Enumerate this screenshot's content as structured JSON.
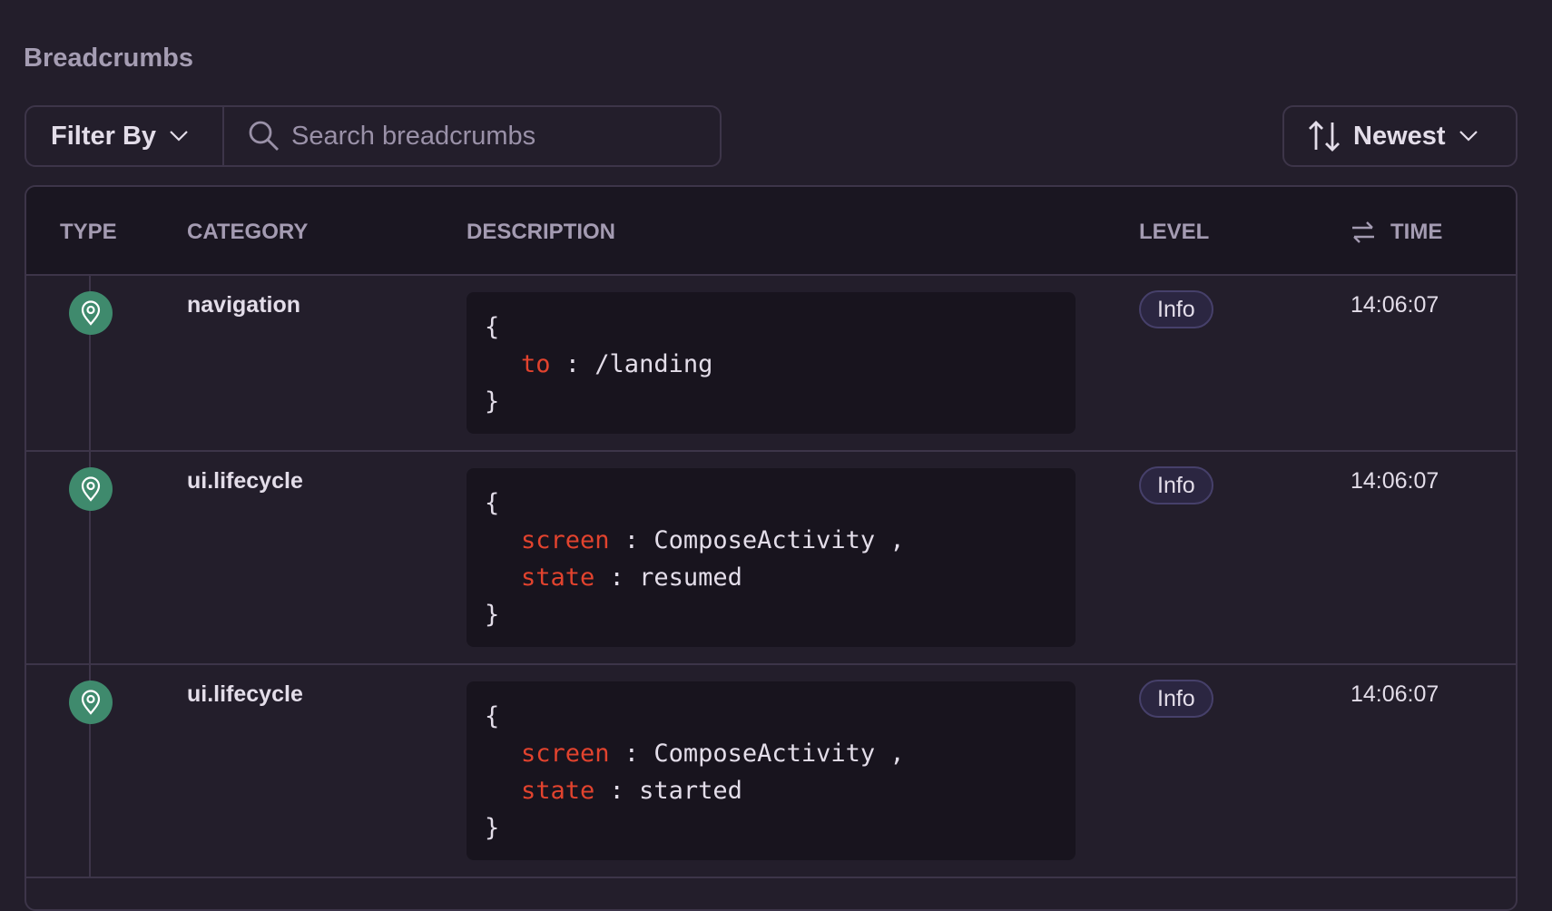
{
  "title": "Breadcrumbs",
  "filter": {
    "label": "Filter By",
    "search_placeholder": "Search breadcrumbs"
  },
  "sort": {
    "label": "Newest"
  },
  "columns": {
    "type": "TYPE",
    "category": "CATEGORY",
    "description": "DESCRIPTION",
    "level": "LEVEL",
    "time": "TIME"
  },
  "rows": [
    {
      "icon": "location-pin-icon",
      "category": "navigation",
      "fields": [
        {
          "key": "to",
          "value": "/landing",
          "sep": ""
        }
      ],
      "level": "Info",
      "time": "14:06:07"
    },
    {
      "icon": "location-pin-icon",
      "category": "ui.lifecycle",
      "fields": [
        {
          "key": "screen",
          "value": "ComposeActivity",
          "sep": " ,"
        },
        {
          "key": "state",
          "value": "resumed",
          "sep": ""
        }
      ],
      "level": "Info",
      "time": "14:06:07"
    },
    {
      "icon": "location-pin-icon",
      "category": "ui.lifecycle",
      "fields": [
        {
          "key": "screen",
          "value": "ComposeActivity",
          "sep": " ,"
        },
        {
          "key": "state",
          "value": "started",
          "sep": ""
        }
      ],
      "level": "Info",
      "time": "14:06:07"
    }
  ],
  "colors": {
    "background": "#231e2b",
    "key": "#e2432e",
    "type_icon": "#3f8a6d"
  }
}
